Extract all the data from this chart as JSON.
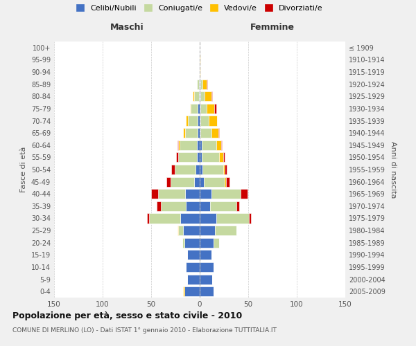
{
  "age_groups": [
    "0-4",
    "5-9",
    "10-14",
    "15-19",
    "20-24",
    "25-29",
    "30-34",
    "35-39",
    "40-44",
    "45-49",
    "50-54",
    "55-59",
    "60-64",
    "65-69",
    "70-74",
    "75-79",
    "80-84",
    "85-89",
    "90-94",
    "95-99",
    "100+"
  ],
  "birth_years": [
    "2005-2009",
    "2000-2004",
    "1995-1999",
    "1990-1994",
    "1985-1989",
    "1980-1984",
    "1975-1979",
    "1970-1974",
    "1965-1969",
    "1960-1964",
    "1955-1959",
    "1950-1954",
    "1945-1949",
    "1940-1944",
    "1935-1939",
    "1930-1934",
    "1925-1929",
    "1920-1924",
    "1915-1919",
    "1910-1914",
    "≤ 1909"
  ],
  "males": {
    "celibe": [
      16,
      13,
      14,
      13,
      16,
      17,
      20,
      14,
      15,
      6,
      4,
      3,
      3,
      2,
      2,
      2,
      1,
      1,
      0,
      0,
      0
    ],
    "coniugato": [
      0,
      0,
      0,
      0,
      2,
      5,
      32,
      26,
      28,
      24,
      22,
      19,
      18,
      13,
      10,
      7,
      5,
      2,
      0,
      0,
      0
    ],
    "vedovo": [
      1,
      0,
      0,
      0,
      0,
      1,
      0,
      0,
      0,
      0,
      0,
      0,
      1,
      2,
      2,
      1,
      1,
      0,
      0,
      0,
      0
    ],
    "divorziato": [
      0,
      0,
      0,
      0,
      0,
      0,
      2,
      4,
      7,
      4,
      3,
      2,
      1,
      0,
      0,
      0,
      0,
      0,
      0,
      0,
      0
    ]
  },
  "females": {
    "celibe": [
      14,
      13,
      14,
      12,
      14,
      16,
      17,
      11,
      12,
      4,
      3,
      2,
      2,
      1,
      1,
      1,
      1,
      1,
      0,
      0,
      0
    ],
    "coniugato": [
      0,
      0,
      0,
      0,
      6,
      22,
      34,
      27,
      30,
      22,
      21,
      18,
      15,
      11,
      8,
      6,
      4,
      2,
      0,
      0,
      0
    ],
    "vedovo": [
      0,
      0,
      0,
      0,
      0,
      0,
      0,
      0,
      0,
      1,
      2,
      4,
      5,
      7,
      9,
      8,
      7,
      4,
      1,
      1,
      0
    ],
    "divorziato": [
      0,
      0,
      0,
      0,
      0,
      0,
      2,
      3,
      7,
      4,
      2,
      2,
      1,
      1,
      0,
      2,
      1,
      1,
      0,
      0,
      0
    ]
  },
  "colors": {
    "celibe": "#4472c4",
    "coniugato": "#c5d9a0",
    "vedovo": "#ffc000",
    "divorziato": "#cc0000"
  },
  "legend_labels": [
    "Celibi/Nubili",
    "Coniugati/e",
    "Vedovi/e",
    "Divorziati/e"
  ],
  "xlim": 150,
  "title": "Popolazione per età, sesso e stato civile - 2010",
  "subtitle": "COMUNE DI MERLINO (LO) - Dati ISTAT 1° gennaio 2010 - Elaborazione TUTTITALIA.IT",
  "xlabel_left": "Maschi",
  "xlabel_right": "Femmine",
  "ylabel_left": "Fasce di età",
  "ylabel_right": "Anni di nascita",
  "bg_color": "#f0f0f0",
  "plot_bg": "#ffffff"
}
